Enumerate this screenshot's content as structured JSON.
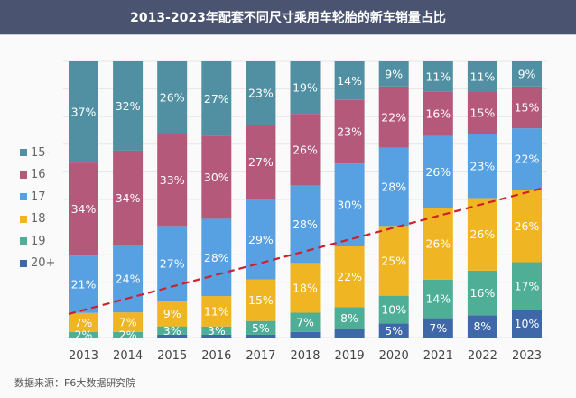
{
  "header": {
    "title": "2013-2023年配套不同尺寸乘用车轮胎的新车销量占比"
  },
  "footer": {
    "source": "数据来源：F6大数据研究院"
  },
  "chart_data": {
    "type": "bar",
    "stacked": true,
    "title": "2013-2023年配套不同尺寸乘用车轮胎的新车销量占比",
    "xlabel": "",
    "ylabel": "",
    "ylim": [
      0,
      100
    ],
    "unit": "%",
    "grid": true,
    "legend_position": "left",
    "categories": [
      "2013",
      "2014",
      "2015",
      "2016",
      "2017",
      "2018",
      "2019",
      "2020",
      "2021",
      "2022",
      "2023"
    ],
    "series": [
      {
        "name": "20+",
        "color": "#3f68a8",
        "values": [
          0,
          0,
          1,
          1,
          1,
          2,
          3,
          5,
          7,
          8,
          10
        ],
        "labels": [
          "",
          "",
          "",
          "",
          "",
          "",
          "",
          "5%",
          "7%",
          "8%",
          "10%"
        ]
      },
      {
        "name": "19",
        "color": "#4fae96",
        "values": [
          2,
          2,
          3,
          3,
          5,
          7,
          8,
          10,
          14,
          16,
          17
        ],
        "labels": [
          "2%",
          "2%",
          "3%",
          "3%",
          "5%",
          "7%",
          "8%",
          "10%",
          "14%",
          "16%",
          "17%"
        ]
      },
      {
        "name": "18",
        "color": "#f0b522",
        "values": [
          7,
          7,
          9,
          11,
          15,
          18,
          22,
          25,
          26,
          26,
          26
        ],
        "labels": [
          "7%",
          "7%",
          "9%",
          "11%",
          "15%",
          "18%",
          "22%",
          "25%",
          "26%",
          "26%",
          "26%"
        ]
      },
      {
        "name": "17",
        "color": "#57a0e2",
        "values": [
          21,
          24,
          27,
          28,
          29,
          28,
          30,
          28,
          26,
          23,
          22
        ],
        "labels": [
          "21%",
          "24%",
          "27%",
          "28%",
          "29%",
          "28%",
          "30%",
          "28%",
          "26%",
          "23%",
          "22%"
        ]
      },
      {
        "name": "16",
        "color": "#b5597a",
        "values": [
          34,
          34,
          33,
          30,
          27,
          26,
          23,
          22,
          16,
          15,
          15
        ],
        "labels": [
          "34%",
          "34%",
          "33%",
          "30%",
          "27%",
          "26%",
          "23%",
          "22%",
          "16%",
          "15%",
          "15%"
        ]
      },
      {
        "name": "15-",
        "color": "#518fa3",
        "values": [
          37,
          32,
          26,
          27,
          23,
          19,
          14,
          9,
          11,
          11,
          9
        ],
        "labels": [
          "37%",
          "32%",
          "26%",
          "27%",
          "23%",
          "19%",
          "14%",
          "9%",
          "11%",
          "11%",
          "9%"
        ]
      }
    ],
    "legend": [
      "15-",
      "16",
      "17",
      "18",
      "19",
      "20+"
    ],
    "trend_line": {
      "style": "dashed",
      "color": "#d0202a",
      "from": {
        "category": "2013",
        "value": 8.5
      },
      "to": {
        "category": "2023",
        "value": 54
      }
    }
  }
}
